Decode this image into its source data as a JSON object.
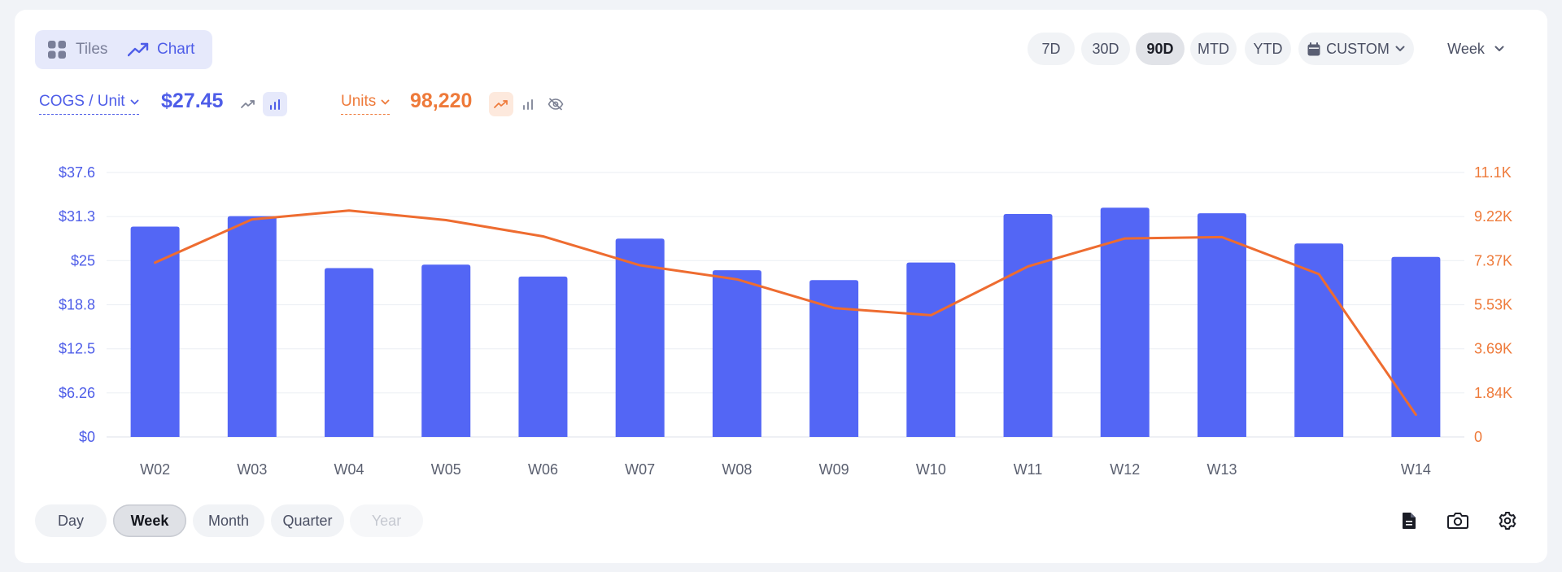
{
  "view_toggle": {
    "tiles_label": "Tiles",
    "chart_label": "Chart"
  },
  "ranges": [
    {
      "label": "7D",
      "active": false
    },
    {
      "label": "30D",
      "active": false
    },
    {
      "label": "90D",
      "active": true
    },
    {
      "label": "MTD",
      "active": false
    },
    {
      "label": "YTD",
      "active": false
    }
  ],
  "custom_label": "CUSTOM",
  "period_select": "Week",
  "metrics": {
    "primary": {
      "label": "COGS / Unit",
      "value": "$27.45",
      "color": "#4e5de8"
    },
    "secondary": {
      "label": "Units",
      "value": "98,220",
      "color": "#ee7a3a"
    }
  },
  "granularity": [
    {
      "label": "Day",
      "state": "normal"
    },
    {
      "label": "Week",
      "state": "active"
    },
    {
      "label": "Month",
      "state": "normal"
    },
    {
      "label": "Quarter",
      "state": "normal"
    },
    {
      "label": "Year",
      "state": "disabled"
    }
  ],
  "chart_data": {
    "type": "bar",
    "categories": [
      "W02",
      "W03",
      "W04",
      "W05",
      "W06",
      "W07",
      "W08",
      "W09",
      "W10",
      "W11",
      "W12",
      "W13",
      "",
      "W14"
    ],
    "series": [
      {
        "name": "COGS / Unit",
        "type": "bar",
        "axis": "left",
        "color": "#5366f5",
        "values": [
          29.9,
          31.4,
          24.0,
          24.5,
          22.8,
          28.2,
          23.7,
          22.3,
          24.8,
          31.7,
          32.6,
          31.8,
          27.5,
          25.6
        ]
      },
      {
        "name": "Units",
        "type": "line",
        "axis": "right",
        "color": "#ee6c30",
        "values": [
          7290,
          9100,
          9470,
          9070,
          8390,
          7180,
          6590,
          5390,
          5090,
          7130,
          8300,
          8360,
          6810,
          930
        ]
      }
    ],
    "y_left": {
      "ticks": [
        "$0",
        "$6.26",
        "$12.5",
        "$18.8",
        "$25",
        "$31.3",
        "$37.6"
      ],
      "ylim": [
        0,
        37.6
      ]
    },
    "y_right": {
      "ticks": [
        "0",
        "1.84K",
        "3.69K",
        "5.53K",
        "7.37K",
        "9.22K",
        "11.1K"
      ],
      "ylim": [
        0,
        11060
      ]
    },
    "grid": true
  }
}
